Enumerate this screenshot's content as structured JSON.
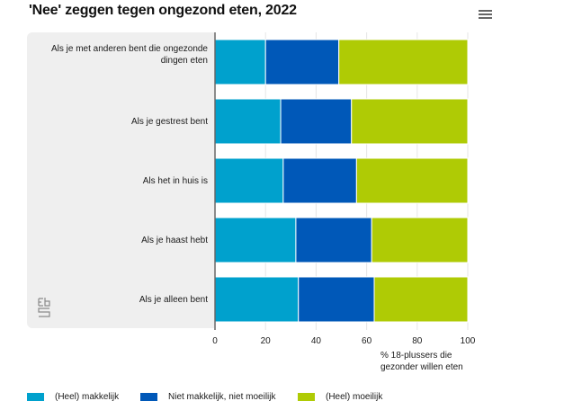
{
  "title": "'Nee' zeggen tegen ongezond eten, 2022",
  "menu_icon": "hamburger-menu-icon",
  "logo": "cbs-logo",
  "axis_title_lines": [
    "% 18-plussers die",
    "gezonder willen eten"
  ],
  "colors": {
    "heel_makkelijk": "#00a1cd",
    "niet_makkelijk_niet_moeilijk": "#0058b8",
    "heel_moeilijk": "#afcb05",
    "panel": "#efefef",
    "axis": "#666666",
    "grid": "#e6e6e6"
  },
  "chart_data": {
    "type": "bar",
    "orientation": "horizontal",
    "stacked": true,
    "title": "'Nee' zeggen tegen ongezond eten, 2022",
    "xlabel": "% 18-plussers die gezonder willen eten",
    "ylabel": "",
    "xlim": [
      0,
      100
    ],
    "xticks": [
      0,
      20,
      40,
      60,
      80,
      100
    ],
    "grid": true,
    "legend_position": "bottom",
    "categories": [
      [
        "Als je met anderen bent die ongezonde",
        "dingen eten"
      ],
      [
        "Als je gestrest bent"
      ],
      [
        "Als het in huis is"
      ],
      [
        "Als je haast hebt"
      ],
      [
        "Als je alleen bent"
      ]
    ],
    "series": [
      {
        "name": "(Heel) makkelijk",
        "color": "#00a1cd",
        "values": [
          20,
          26,
          27,
          32,
          33
        ]
      },
      {
        "name": "Niet makkelijk, niet moeilijk",
        "color": "#0058b8",
        "values": [
          29,
          28,
          29,
          30,
          30
        ]
      },
      {
        "name": "(Heel) moeilijk",
        "color": "#afcb05",
        "values": [
          51,
          46,
          44,
          38,
          37
        ]
      }
    ]
  }
}
